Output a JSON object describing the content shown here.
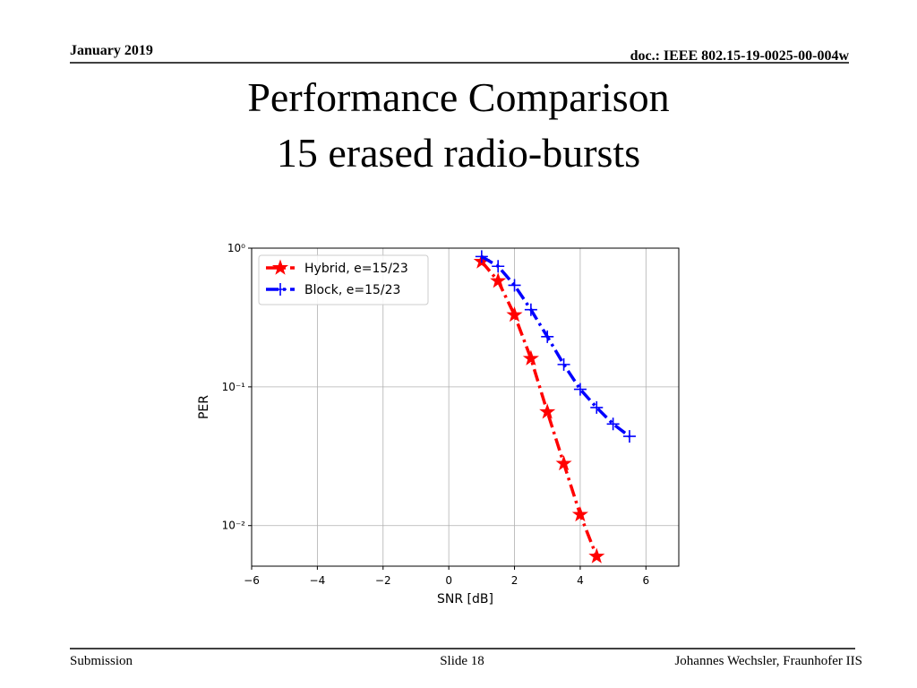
{
  "header": {
    "date": "January 2019",
    "doc": "doc.: IEEE 802.15-19-0025-00-004w"
  },
  "title": {
    "line1": "Performance Comparison",
    "line2": "15 erased radio-bursts"
  },
  "footer": {
    "left": "Submission",
    "center": "Slide 18",
    "right": "Johannes Wechsler, Fraunhofer IIS"
  },
  "chart_data": {
    "type": "line",
    "xlabel": "SNR [dB]",
    "ylabel": "PER",
    "xlim": [
      -6,
      7
    ],
    "ylim": [
      0.0051,
      1
    ],
    "yscale": "log",
    "grid": true,
    "legend": "upper-left",
    "xticks": [
      {
        "value": -6,
        "label": "−6"
      },
      {
        "value": -4,
        "label": "−4"
      },
      {
        "value": -2,
        "label": "−2"
      },
      0,
      2,
      4,
      6
    ],
    "yticks": [
      {
        "value": 1,
        "label": "10⁰"
      },
      {
        "value": 0.1,
        "label": "10⁻¹"
      },
      {
        "value": 0.01,
        "label": "10⁻²"
      }
    ],
    "series": [
      {
        "name": "Hybrid, e=15/23",
        "color": "#ff0000",
        "marker": "star",
        "x": [
          1,
          1.5,
          2,
          2.5,
          3,
          3.5,
          4,
          4.5
        ],
        "values": [
          0.8,
          0.58,
          0.33,
          0.16,
          0.066,
          0.028,
          0.012,
          0.006
        ]
      },
      {
        "name": "Block, e=15/23",
        "color": "#0000ff",
        "marker": "plus",
        "x": [
          1,
          1.5,
          2,
          2.5,
          3,
          3.5,
          4,
          4.5,
          5,
          5.5
        ],
        "values": [
          0.87,
          0.74,
          0.54,
          0.36,
          0.23,
          0.145,
          0.096,
          0.071,
          0.054,
          0.044
        ]
      }
    ]
  }
}
